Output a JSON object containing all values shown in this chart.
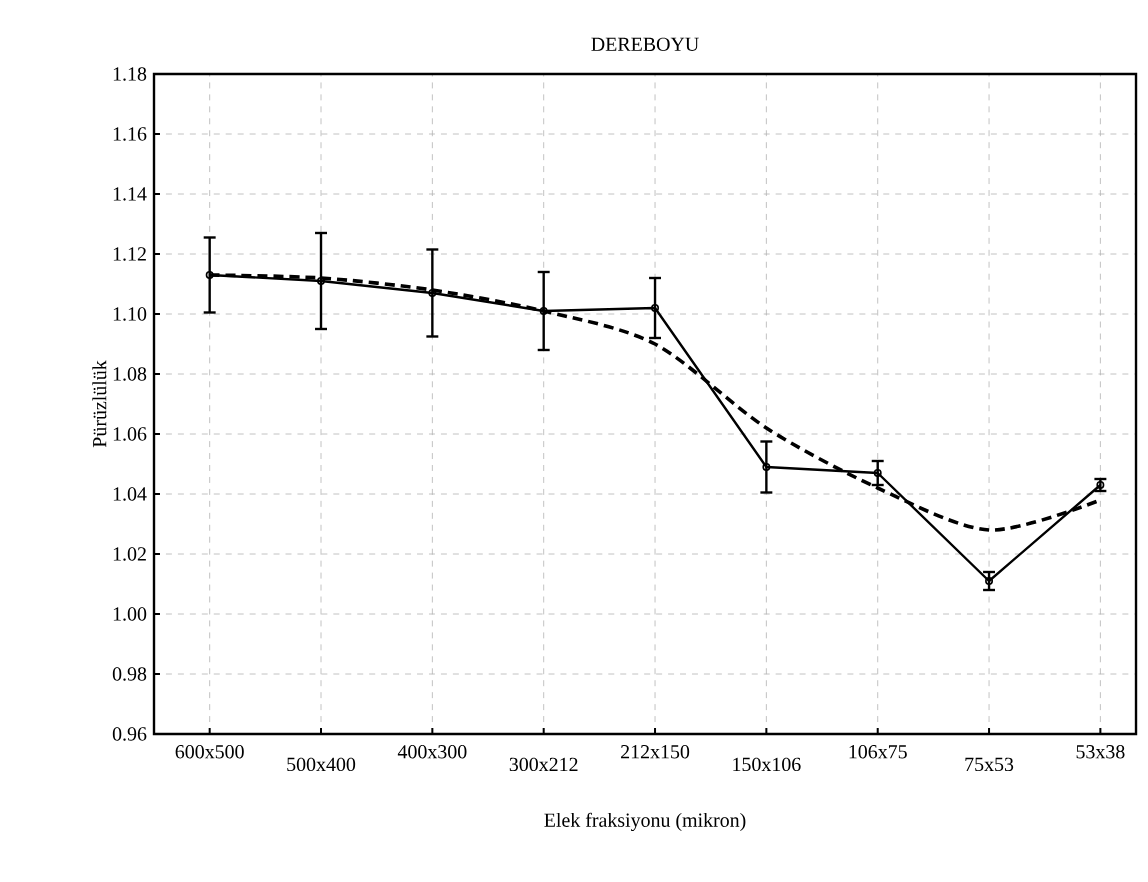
{
  "chart_data": {
    "type": "line",
    "title": "DEREBOYU",
    "xlabel": "Elek fraksiyonu (mikron)",
    "ylabel": "Pürüzlülük",
    "categories": [
      "600x500",
      "500x400",
      "400x300",
      "300x212",
      "212x150",
      "150x106",
      "106x75",
      "75x53",
      "53x38"
    ],
    "series": [
      {
        "color": "#000000",
        "marker": "circle",
        "line_style": "solid",
        "values": [
          1.113,
          1.111,
          1.107,
          1.101,
          1.102,
          1.049,
          1.047,
          1.011,
          1.043
        ],
        "errors": [
          0.0125,
          0.016,
          0.0145,
          0.013,
          0.01,
          0.0085,
          0.004,
          0.003,
          0.002
        ]
      },
      {
        "color": "#000000",
        "marker": "none",
        "line_style": "dashed",
        "values": [
          1.113,
          1.112,
          1.108,
          1.101,
          1.09,
          1.062,
          1.042,
          1.028,
          1.038
        ]
      }
    ],
    "ylim": [
      0.96,
      1.18
    ],
    "yticks": [
      {
        "value": 0.96,
        "label": "0.96"
      },
      {
        "value": 0.98,
        "label": "0.98"
      },
      {
        "value": 1.0,
        "label": "1.00"
      },
      {
        "value": 1.02,
        "label": "1.02"
      },
      {
        "value": 1.04,
        "label": "1.04"
      },
      {
        "value": 1.06,
        "label": "1.06"
      },
      {
        "value": 1.08,
        "label": "1.08"
      },
      {
        "value": 1.1,
        "label": "1.10"
      },
      {
        "value": 1.12,
        "label": "1.12"
      },
      {
        "value": 1.14,
        "label": "1.14"
      },
      {
        "value": 1.16,
        "label": "1.16"
      },
      {
        "value": 1.18,
        "label": "1.18"
      }
    ],
    "grid": true
  }
}
